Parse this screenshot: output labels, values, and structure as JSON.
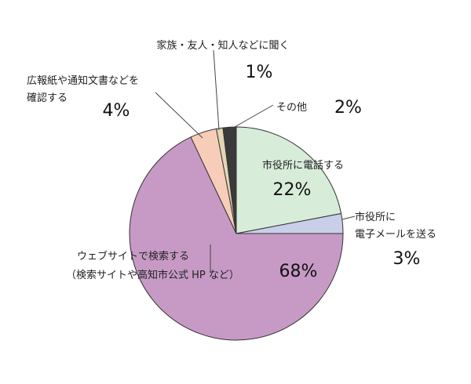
{
  "chart_data": {
    "type": "pie",
    "start_angle_deg": 0,
    "direction": "clockwise",
    "slices": [
      {
        "label": "市役所に電話する",
        "value": 22,
        "display": "22%",
        "color": "#d7ecd9"
      },
      {
        "label_lines": [
          "市役所に",
          "電子メールを送る"
        ],
        "value": 3,
        "display": "3%",
        "color": "#c9cfe8"
      },
      {
        "label_lines": [
          "ウェブサイトで検索する",
          "（検索サイトや高知市公式 HP など）"
        ],
        "value": 68,
        "display": "68%",
        "color": "#c79ac6"
      },
      {
        "label_lines": [
          "広報紙や通知文書などを",
          "確認する"
        ],
        "value": 4,
        "display": "4%",
        "color": "#f7cdb9"
      },
      {
        "label": "家族・友人・知人などに聞く",
        "value": 1,
        "display": "1%",
        "color": "#e2d6b4"
      },
      {
        "label": "その他",
        "value": 2,
        "display": "2%",
        "color": "#3a3a3a"
      }
    ]
  }
}
